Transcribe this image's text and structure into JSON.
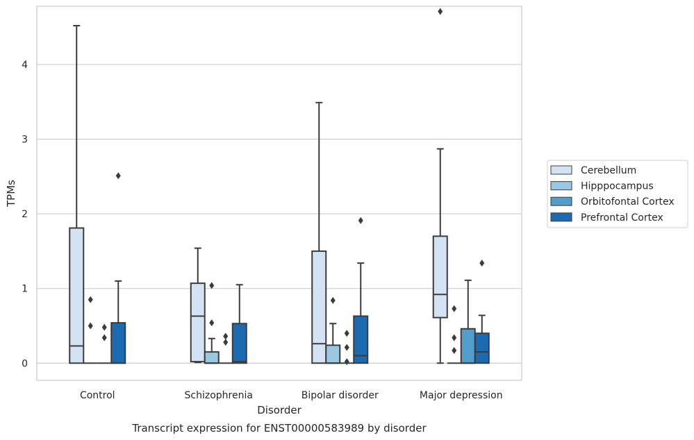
{
  "chart_data": {
    "type": "boxplot",
    "title": "Transcript expression for ENST00000583989 by disorder",
    "xlabel": "Disorder",
    "ylabel": "TPMs",
    "ylim": [
      -0.23,
      4.78
    ],
    "yticks": [
      0,
      1,
      2,
      3,
      4
    ],
    "categories": [
      "Control",
      "Schizophrenia",
      "Bipolar disorder",
      "Major depression"
    ],
    "grid": true,
    "legend_position": "right",
    "series": [
      {
        "name": "Cerebellum",
        "color": "#d3e3f3",
        "boxes": [
          {
            "min": 0,
            "q1": 0,
            "median": 0.23,
            "q3": 1.81,
            "max": 4.52,
            "outliers": []
          },
          {
            "min": 0.01,
            "q1": 0.02,
            "median": 0.63,
            "q3": 1.07,
            "max": 1.54,
            "outliers": []
          },
          {
            "min": 0,
            "q1": 0,
            "median": 0.26,
            "q3": 1.5,
            "max": 3.49,
            "outliers": []
          },
          {
            "min": 0,
            "q1": 0.61,
            "median": 0.92,
            "q3": 1.7,
            "max": 2.87,
            "outliers": [
              4.71
            ]
          }
        ]
      },
      {
        "name": "Hipppocampus",
        "color": "#9ac8e0",
        "boxes": [
          {
            "min": 0,
            "q1": 0,
            "median": 0,
            "q3": 0,
            "max": 0,
            "outliers": [
              0.85,
              0.5
            ]
          },
          {
            "min": 0,
            "q1": 0,
            "median": 0,
            "q3": 0.15,
            "max": 0.33,
            "outliers": [
              1.04,
              0.54
            ]
          },
          {
            "min": 0,
            "q1": 0,
            "median": 0,
            "q3": 0.24,
            "max": 0.53,
            "outliers": [
              0.84
            ]
          },
          {
            "min": 0,
            "q1": 0,
            "median": 0,
            "q3": 0,
            "max": 0,
            "outliers": [
              0.73,
              0.34,
              0.17
            ]
          }
        ]
      },
      {
        "name": "Orbitofontal Cortex",
        "color": "#529dcc",
        "boxes": [
          {
            "min": 0,
            "q1": 0,
            "median": 0,
            "q3": 0,
            "max": 0,
            "outliers": [
              0.48,
              0.34
            ]
          },
          {
            "min": 0,
            "q1": 0,
            "median": 0,
            "q3": 0,
            "max": 0,
            "outliers": [
              0.36,
              0.28
            ]
          },
          {
            "min": 0,
            "q1": 0,
            "median": 0,
            "q3": 0,
            "max": 0,
            "outliers": [
              0.4,
              0.21,
              0.02
            ]
          },
          {
            "min": 0,
            "q1": 0,
            "median": 0,
            "q3": 0.46,
            "max": 1.11,
            "outliers": []
          }
        ]
      },
      {
        "name": "Prefrontal Cortex",
        "color": "#1c6aaf",
        "boxes": [
          {
            "min": 0,
            "q1": 0,
            "median": 0,
            "q3": 0.54,
            "max": 1.1,
            "outliers": [
              2.51
            ]
          },
          {
            "min": 0,
            "q1": 0,
            "median": 0.02,
            "q3": 0.53,
            "max": 1.05,
            "outliers": []
          },
          {
            "min": 0,
            "q1": 0,
            "median": 0.1,
            "q3": 0.63,
            "max": 1.34,
            "outliers": [
              1.91
            ]
          },
          {
            "min": 0,
            "q1": 0,
            "median": 0.15,
            "q3": 0.4,
            "max": 0.64,
            "outliers": [
              1.34
            ]
          }
        ]
      }
    ]
  }
}
